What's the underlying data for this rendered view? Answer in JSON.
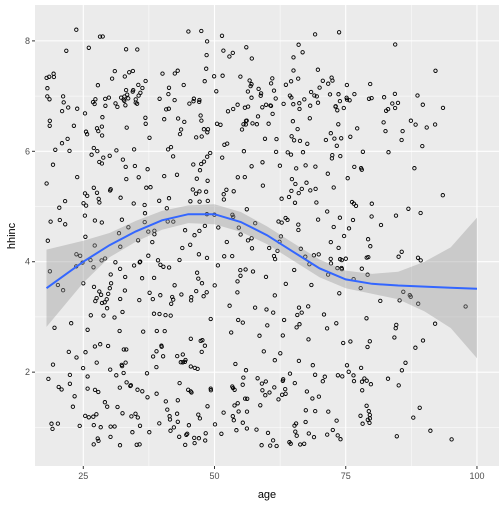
{
  "chart_data": {
    "type": "scatter",
    "title": "",
    "xlabel": "age",
    "ylabel": "hhinc",
    "xlim": [
      15.8,
      104.2
    ],
    "ylim": [
      0.3,
      8.65
    ],
    "x_ticks": [
      25,
      50,
      75,
      100
    ],
    "y_ticks": [
      2,
      4,
      6,
      8
    ],
    "grid": true,
    "legend": "none",
    "colors": {
      "panel": "#ebebeb",
      "grid_major": "#ffffff",
      "points": "#000000",
      "smooth_line": "#3366ff",
      "ribbon": "#999999"
    },
    "points_seed": 20240607,
    "points_count": 800,
    "smooth": {
      "method": "loess",
      "x": [
        18,
        25,
        30,
        35,
        40,
        45,
        50,
        55,
        60,
        65,
        70,
        75,
        80,
        85,
        90,
        95,
        100
      ],
      "y": [
        3.52,
        4.0,
        4.3,
        4.55,
        4.75,
        4.86,
        4.86,
        4.72,
        4.48,
        4.18,
        3.88,
        3.68,
        3.6,
        3.57,
        3.55,
        3.53,
        3.51
      ],
      "lower": [
        2.82,
        3.62,
        4.08,
        4.36,
        4.58,
        4.7,
        4.68,
        4.54,
        4.32,
        4.02,
        3.72,
        3.52,
        3.42,
        3.32,
        3.1,
        2.8,
        2.25
      ],
      "upper": [
        4.22,
        4.38,
        4.52,
        4.74,
        4.92,
        5.02,
        5.04,
        4.9,
        4.64,
        4.34,
        4.04,
        3.84,
        3.78,
        3.82,
        4.0,
        4.26,
        4.8
      ]
    }
  }
}
